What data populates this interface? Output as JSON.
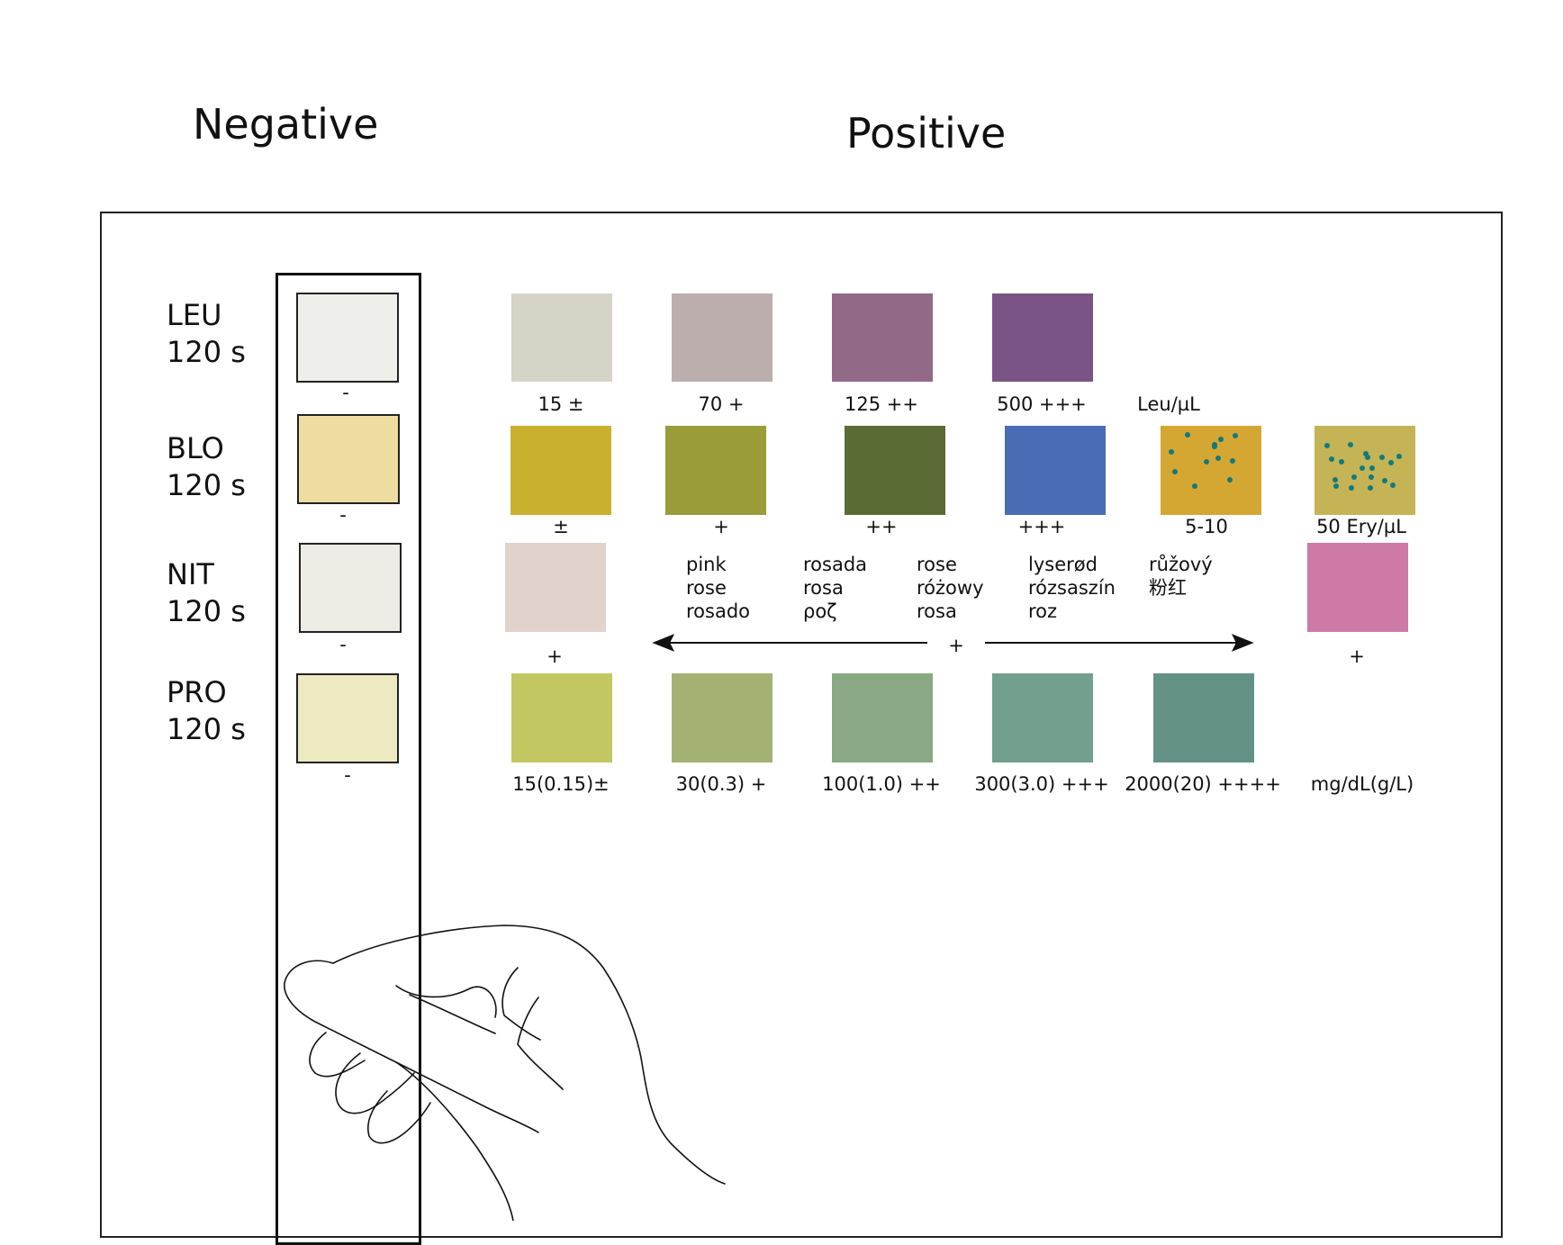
{
  "headers": {
    "negative": "Negative",
    "positive": "Positive"
  },
  "rows": [
    {
      "key": "leu",
      "name": "LEU",
      "time": "120 s",
      "negative": {
        "color": "#eeeeea",
        "label": "-"
      },
      "swatches": [
        {
          "color": "#d6d3c7",
          "label": "15 ±"
        },
        {
          "color": "#bdaeae",
          "label": "70 +"
        },
        {
          "color": "#926a88",
          "label": "125 ++"
        },
        {
          "color": "#7a5486",
          "label": "500 +++"
        }
      ],
      "unit": "Leu/µL"
    },
    {
      "key": "blo",
      "name": "BLO",
      "time": "120 s",
      "negative": {
        "color": "#efdca0",
        "label": "-"
      },
      "swatches": [
        {
          "color": "#c9b02f",
          "label": "±"
        },
        {
          "color": "#999c38",
          "label": "+"
        },
        {
          "color": "#5a6c33",
          "label": "++"
        },
        {
          "color": "#4a6cb4",
          "label": "+++"
        },
        {
          "color": "#d4a732",
          "label": "5-10",
          "dotted": true
        },
        {
          "color": "#c4b455",
          "label": "50 Ery/µL",
          "dotted": true
        }
      ]
    },
    {
      "key": "nit",
      "name": "NIT",
      "time": "120 s",
      "negative": {
        "color": "#eeebe5",
        "label": "-"
      },
      "swatches": [
        {
          "color": "#e1d3cb",
          "label": "+"
        },
        {
          "color": "#cd7aa7",
          "label": "+"
        }
      ],
      "middle_label": "+",
      "color_names": [
        [
          "pink",
          "rose",
          "rosado"
        ],
        [
          "rosada",
          "rosa",
          "ροζ"
        ],
        [
          "rose",
          "różowy",
          "rosa"
        ],
        [
          "lyserød",
          "rózsaszín",
          "roz"
        ],
        [
          "růžový",
          "粉红"
        ]
      ]
    },
    {
      "key": "pro",
      "name": "PRO",
      "time": "120 s",
      "negative": {
        "color": "#ede9c0",
        "label": "-"
      },
      "swatches": [
        {
          "color": "#c2c762",
          "label": "15(0.15)±"
        },
        {
          "color": "#a3b273",
          "label": "30(0.3) +"
        },
        {
          "color": "#89a883",
          "label": "100(1.0) ++"
        },
        {
          "color": "#729f8e",
          "label": "300(3.0) +++"
        },
        {
          "color": "#649186",
          "label": "2000(20) ++++"
        }
      ],
      "unit": "mg/dL(g/L)"
    }
  ]
}
